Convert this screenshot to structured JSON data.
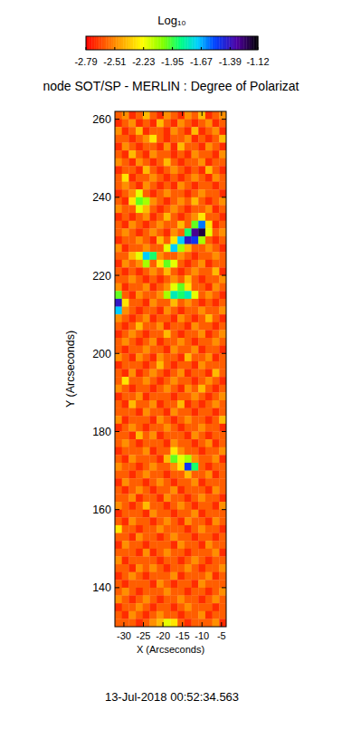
{
  "chart_data": {
    "type": "heatmap",
    "title": "node SOT/SP - MERLIN : Degree of Polarizat",
    "x_label": "X (Arcseconds)",
    "y_label": "Y (Arcseconds)",
    "annotation": "13-Jul-2018 00:52:34.563",
    "colorbar_label": "Log₁₀",
    "colorbar_range": [
      -2.79,
      -1.12
    ],
    "colorbar_ticks": [
      -2.79,
      -2.51,
      -2.23,
      -1.95,
      -1.67,
      -1.39,
      -1.12
    ],
    "xlim": [
      -32.3,
      -3.8
    ],
    "ylim": [
      130,
      262
    ],
    "xticks": [
      -30,
      -25,
      -20,
      -15,
      -10,
      -5
    ],
    "yticks": [
      140,
      160,
      180,
      200,
      220,
      240,
      260
    ],
    "cells": [
      [
        -2.6,
        -2.5,
        -2.7,
        -2.6,
        -2.4,
        -2.6,
        -2.7,
        -2.5,
        -2.6,
        -2.7,
        -2.5,
        -2.6,
        -2.4,
        -2.7,
        -2.6,
        -2.5
      ],
      [
        -2.7,
        -2.6,
        -2.5,
        -2.7,
        -2.6,
        -2.7,
        -2.4,
        -2.6,
        -2.7,
        -2.5,
        -2.6,
        -2.7,
        -2.6,
        -2.5,
        -2.7,
        -2.6
      ],
      [
        -2.5,
        -2.7,
        -2.6,
        -2.4,
        -2.7,
        -2.6,
        -2.6,
        -2.7,
        -2.5,
        -2.6,
        -2.7,
        -2.4,
        -2.7,
        -2.6,
        -2.5,
        -2.7
      ],
      [
        -2.6,
        -2.6,
        -2.7,
        -2.6,
        -2.5,
        -2.3,
        -2.6,
        -2.7,
        -2.6,
        -2.6,
        -2.5,
        -2.7,
        -2.6,
        -2.7,
        -2.6,
        -2.4
      ],
      [
        -2.7,
        -2.5,
        -2.6,
        -2.7,
        -2.6,
        -2.6,
        -2.7,
        -2.5,
        -2.7,
        -2.4,
        -2.6,
        -2.6,
        -2.7,
        -2.5,
        -2.6,
        -2.7
      ],
      [
        -2.6,
        -2.7,
        -2.4,
        -2.6,
        -2.7,
        -2.5,
        -2.6,
        -2.6,
        -2.7,
        -2.6,
        -2.7,
        -2.5,
        -2.6,
        -2.6,
        -2.7,
        -2.5
      ],
      [
        -2.5,
        -2.6,
        -2.7,
        -2.5,
        -2.6,
        -2.7,
        -2.6,
        -2.4,
        -2.6,
        -2.7,
        -2.6,
        -2.6,
        -2.5,
        -2.7,
        -2.6,
        -2.6
      ],
      [
        -2.7,
        -2.6,
        -2.6,
        -2.7,
        -2.4,
        -2.6,
        -2.7,
        -2.6,
        -2.5,
        -2.6,
        -2.7,
        -2.6,
        -2.7,
        -2.4,
        -2.6,
        -2.7
      ],
      [
        -2.6,
        -2.3,
        -2.7,
        -2.6,
        -2.6,
        -2.5,
        -2.6,
        -2.7,
        -2.6,
        -2.7,
        -2.6,
        -2.5,
        -2.6,
        -2.7,
        -2.5,
        -2.6
      ],
      [
        -2.6,
        -2.5,
        -2.6,
        -2.7,
        -2.5,
        -2.6,
        -2.7,
        -2.6,
        -2.7,
        -2.5,
        -2.6,
        -2.7,
        -2.6,
        -2.6,
        -2.7,
        -2.6
      ],
      [
        -2.7,
        -2.6,
        -2.5,
        -2.2,
        -2.6,
        -2.7,
        -2.6,
        -2.5,
        -2.6,
        -2.6,
        -2.7,
        -2.6,
        -2.5,
        -2.6,
        -2.6,
        -2.7
      ],
      [
        -2.6,
        -2.7,
        -2.3,
        -2.0,
        -2.1,
        -2.5,
        -2.6,
        -2.7,
        -2.6,
        -2.5,
        -2.6,
        -2.4,
        -2.6,
        -2.7,
        -2.6,
        -2.5
      ],
      [
        -2.5,
        -2.6,
        -2.6,
        -2.2,
        -2.4,
        -2.6,
        -2.7,
        -2.6,
        -2.5,
        -2.6,
        -2.7,
        -2.6,
        -2.6,
        -2.5,
        -2.7,
        -2.6
      ],
      [
        -2.7,
        -2.6,
        -2.7,
        -2.6,
        -2.5,
        -2.7,
        -2.6,
        -2.4,
        -2.6,
        -2.7,
        -2.6,
        -2.5,
        -2.3,
        -2.6,
        -2.6,
        -2.7
      ],
      [
        -2.6,
        -2.7,
        -2.5,
        -2.6,
        -2.7,
        -2.6,
        -2.5,
        -2.6,
        -2.6,
        -2.4,
        -2.6,
        -2.0,
        -1.6,
        -2.3,
        -2.7,
        -2.6
      ],
      [
        -2.6,
        -2.5,
        -2.6,
        -2.7,
        -2.6,
        -2.5,
        -2.6,
        -2.7,
        -2.5,
        -2.6,
        -1.9,
        -1.3,
        -1.2,
        -2.2,
        -2.6,
        -2.5
      ],
      [
        -2.7,
        -2.6,
        -2.6,
        -2.5,
        -2.6,
        -2.7,
        -2.4,
        -2.6,
        -2.3,
        -1.7,
        -1.4,
        -1.5,
        -2.1,
        -2.6,
        -2.7,
        -2.6
      ],
      [
        -2.5,
        -2.7,
        -2.6,
        -2.6,
        -2.5,
        -2.6,
        -2.6,
        -2.2,
        -1.7,
        -2.1,
        -2.4,
        -2.6,
        -2.6,
        -2.5,
        -2.6,
        -2.7
      ],
      [
        -2.6,
        -2.6,
        -2.4,
        -2.2,
        -1.7,
        -1.9,
        -2.5,
        -2.6,
        -2.6,
        -2.5,
        -2.6,
        -2.7,
        -2.6,
        -2.6,
        -2.5,
        -2.6
      ],
      [
        -2.7,
        -2.5,
        -2.6,
        -2.5,
        -2.1,
        -2.6,
        -2.3,
        -2.0,
        -2.2,
        -2.6,
        -2.7,
        -2.6,
        -2.5,
        -2.7,
        -2.6,
        -2.6
      ],
      [
        -2.6,
        -2.7,
        -2.6,
        -2.7,
        -2.6,
        -2.5,
        -2.6,
        -2.4,
        -2.6,
        -2.7,
        -2.6,
        -2.5,
        -2.6,
        -2.6,
        -2.4,
        -2.7
      ],
      [
        -2.6,
        -2.6,
        -2.5,
        -2.6,
        -2.7,
        -2.6,
        -2.7,
        -2.6,
        -2.5,
        -2.6,
        -2.4,
        -2.6,
        -2.7,
        -2.6,
        -2.6,
        -2.5
      ],
      [
        -2.5,
        -2.7,
        -2.6,
        -2.6,
        -2.5,
        -2.7,
        -2.6,
        -2.5,
        -2.2,
        -2.0,
        -2.3,
        -2.6,
        -2.6,
        -2.7,
        -2.5,
        -2.6
      ],
      [
        -2.0,
        -2.6,
        -2.7,
        -2.5,
        -2.6,
        -2.6,
        -2.5,
        -2.1,
        -1.8,
        -1.9,
        -1.8,
        -2.2,
        -2.6,
        -2.5,
        -2.6,
        -2.7
      ],
      [
        -1.4,
        -2.3,
        -2.6,
        -2.6,
        -2.7,
        -2.5,
        -2.6,
        -2.6,
        -2.4,
        -2.6,
        -2.5,
        -2.6,
        -2.7,
        -2.6,
        -2.7,
        -2.6
      ],
      [
        -1.7,
        -2.5,
        -2.6,
        -2.7,
        -2.6,
        -2.6,
        -2.7,
        -2.5,
        -2.6,
        -2.7,
        -2.6,
        -2.6,
        -2.5,
        -2.6,
        -2.6,
        -2.5
      ],
      [
        -2.5,
        -2.6,
        -2.7,
        -2.6,
        -2.5,
        -2.7,
        -2.6,
        -2.6,
        -2.7,
        -2.5,
        -2.6,
        -2.7,
        -2.6,
        -2.4,
        -2.6,
        -2.7
      ],
      [
        -2.6,
        -2.7,
        -2.6,
        -2.4,
        -2.6,
        -2.6,
        -2.5,
        -2.7,
        -2.6,
        -2.6,
        -2.7,
        -2.5,
        -2.6,
        -2.6,
        -2.7,
        -2.6
      ],
      [
        -2.7,
        -2.6,
        -2.5,
        -2.6,
        -2.7,
        -2.6,
        -2.6,
        -2.4,
        -2.6,
        -2.7,
        -2.6,
        -2.6,
        -2.5,
        -2.7,
        -2.6,
        -2.5
      ],
      [
        -2.6,
        -2.5,
        -2.6,
        -2.7,
        -2.6,
        -2.5,
        -2.7,
        -2.6,
        -2.6,
        -2.5,
        -2.6,
        -2.7,
        -2.6,
        -2.6,
        -2.5,
        -2.6
      ],
      [
        -2.6,
        -2.7,
        -2.6,
        -2.6,
        -2.5,
        -2.6,
        -2.6,
        -2.7,
        -2.5,
        -2.6,
        -2.6,
        -2.5,
        -2.7,
        -2.6,
        -2.6,
        -2.7
      ],
      [
        -2.5,
        -2.6,
        -2.7,
        -2.5,
        -2.6,
        -2.7,
        -2.5,
        -2.6,
        -2.6,
        -2.7,
        -2.4,
        -2.6,
        -2.6,
        -2.5,
        -2.7,
        -2.6
      ],
      [
        -2.7,
        -2.6,
        -2.6,
        -2.6,
        -2.7,
        -2.6,
        -2.4,
        -2.6,
        -2.7,
        -2.6,
        -2.6,
        -2.7,
        -2.5,
        -2.6,
        -2.6,
        -2.6
      ],
      [
        -2.6,
        -2.7,
        -2.5,
        -2.7,
        -2.6,
        -2.5,
        -2.6,
        -2.7,
        -2.6,
        -2.5,
        -2.7,
        -2.6,
        -2.6,
        -2.7,
        -2.4,
        -2.6
      ],
      [
        -2.6,
        -2.3,
        -2.6,
        -2.6,
        -2.5,
        -2.6,
        -2.7,
        -2.6,
        -2.5,
        -2.6,
        -2.6,
        -2.7,
        -2.6,
        -2.5,
        -2.6,
        -2.7
      ],
      [
        -2.5,
        -2.6,
        -2.7,
        -2.6,
        -2.6,
        -2.7,
        -2.6,
        -2.5,
        -2.6,
        -2.7,
        -2.5,
        -2.6,
        -2.4,
        -2.6,
        -2.7,
        -2.6
      ],
      [
        -2.7,
        -2.6,
        -2.6,
        -2.5,
        -2.7,
        -2.6,
        -2.6,
        -2.6,
        -2.7,
        -2.6,
        -2.6,
        -2.5,
        -2.6,
        -2.7,
        -2.6,
        -2.5
      ],
      [
        -2.6,
        -2.7,
        -2.4,
        -2.6,
        -2.6,
        -2.5,
        -2.7,
        -2.6,
        -2.6,
        -2.4,
        -2.7,
        -2.6,
        -2.7,
        -2.6,
        -2.5,
        -2.6
      ],
      [
        -2.6,
        -2.6,
        -2.6,
        -2.7,
        -2.5,
        -2.6,
        -2.6,
        -2.7,
        -2.5,
        -2.6,
        -2.6,
        -2.7,
        -2.6,
        -2.6,
        -2.7,
        -2.6
      ],
      [
        -2.5,
        -2.7,
        -2.6,
        -2.6,
        -2.6,
        -2.7,
        -2.5,
        -2.6,
        -2.7,
        -2.6,
        -2.5,
        -2.6,
        -2.6,
        -2.7,
        -2.6,
        -2.4
      ],
      [
        -2.7,
        -2.6,
        -2.5,
        -2.6,
        -2.7,
        -2.6,
        -2.6,
        -2.5,
        -2.6,
        -2.7,
        -2.6,
        -2.6,
        -2.5,
        -2.6,
        -2.6,
        -2.7
      ],
      [
        -2.6,
        -2.6,
        -2.7,
        -2.4,
        -2.6,
        -2.5,
        -2.7,
        -2.6,
        -2.6,
        -2.6,
        -2.7,
        -2.5,
        -2.6,
        -2.7,
        -2.6,
        -2.6
      ],
      [
        -2.6,
        -2.5,
        -2.6,
        -2.7,
        -2.6,
        -2.6,
        -2.6,
        -2.7,
        -2.5,
        -2.6,
        -2.6,
        -2.7,
        -2.6,
        -2.5,
        -2.7,
        -2.6
      ],
      [
        -2.7,
        -2.6,
        -2.6,
        -2.6,
        -2.5,
        -2.7,
        -2.6,
        -2.6,
        -2.3,
        -2.5,
        -2.6,
        -2.6,
        -2.7,
        -2.6,
        -2.6,
        -2.5
      ],
      [
        -2.6,
        -2.7,
        -2.5,
        -2.6,
        -2.6,
        -2.6,
        -2.7,
        -2.4,
        -2.0,
        -2.2,
        -2.1,
        -2.5,
        -2.6,
        -2.6,
        -2.5,
        -2.7
      ],
      [
        -2.5,
        -2.6,
        -2.6,
        -2.7,
        -2.6,
        -2.5,
        -2.6,
        -2.6,
        -2.5,
        -2.3,
        -1.5,
        -1.9,
        -2.6,
        -2.7,
        -2.6,
        -2.6
      ],
      [
        -2.6,
        -2.6,
        -2.7,
        -2.6,
        -2.5,
        -2.6,
        -2.6,
        -2.7,
        -2.6,
        -2.6,
        -2.4,
        -2.6,
        -2.6,
        -2.5,
        -2.7,
        -2.6
      ],
      [
        -2.7,
        -2.5,
        -2.6,
        -2.6,
        -2.7,
        -2.6,
        -2.5,
        -2.6,
        -2.7,
        -2.6,
        -2.6,
        -2.5,
        -2.7,
        -2.6,
        -2.6,
        -2.6
      ],
      [
        -2.6,
        -2.7,
        -2.6,
        -2.5,
        -2.6,
        -2.7,
        -2.6,
        -2.6,
        -2.5,
        -2.7,
        -2.6,
        -2.6,
        -2.6,
        -2.7,
        -2.5,
        -2.6
      ],
      [
        -2.6,
        -2.6,
        -2.5,
        -2.7,
        -2.6,
        -2.6,
        -2.7,
        -2.5,
        -2.6,
        -2.6,
        -2.7,
        -2.6,
        -2.5,
        -2.6,
        -2.6,
        -2.7
      ],
      [
        -2.5,
        -2.6,
        -2.7,
        -2.6,
        -2.4,
        -2.6,
        -2.6,
        -2.7,
        -2.6,
        -2.5,
        -2.6,
        -2.7,
        -2.6,
        -2.6,
        -2.7,
        -2.5
      ],
      [
        -2.7,
        -2.6,
        -2.6,
        -2.6,
        -2.7,
        -2.5,
        -2.6,
        -2.6,
        -2.7,
        -2.6,
        -2.6,
        -2.5,
        -2.7,
        -2.6,
        -2.6,
        -2.6
      ],
      [
        -2.6,
        -2.7,
        -2.5,
        -2.6,
        -2.6,
        -2.7,
        -2.6,
        -2.5,
        -2.6,
        -2.7,
        -2.5,
        -2.6,
        -2.6,
        -2.7,
        -2.5,
        -2.6
      ],
      [
        -2.3,
        -2.6,
        -2.6,
        -2.7,
        -2.6,
        -2.6,
        -2.5,
        -2.6,
        -2.6,
        -2.6,
        -2.7,
        -2.6,
        -2.5,
        -2.6,
        -2.6,
        -2.7
      ],
      [
        -2.6,
        -2.6,
        -2.7,
        -2.5,
        -2.6,
        -2.6,
        -2.7,
        -2.6,
        -2.5,
        -2.6,
        -2.6,
        -2.7,
        -2.6,
        -2.6,
        -2.7,
        -2.6
      ],
      [
        -2.7,
        -2.5,
        -2.6,
        -2.6,
        -2.7,
        -2.6,
        -2.6,
        -2.6,
        -2.7,
        -2.5,
        -2.6,
        -2.6,
        -2.7,
        -2.5,
        -2.6,
        -2.6
      ],
      [
        -2.6,
        -2.6,
        -2.6,
        -2.7,
        -2.5,
        -2.7,
        -2.6,
        -2.5,
        -2.6,
        -2.6,
        -2.7,
        -2.6,
        -2.6,
        -2.6,
        -2.5,
        -2.7
      ],
      [
        -2.5,
        -2.7,
        -2.6,
        -2.6,
        -2.6,
        -2.6,
        -2.7,
        -2.6,
        -2.6,
        -2.7,
        -2.6,
        -2.5,
        -2.6,
        -2.7,
        -2.6,
        -2.6
      ],
      [
        -2.6,
        -2.6,
        -2.7,
        -2.5,
        -2.6,
        -2.5,
        -2.6,
        -2.7,
        -2.6,
        -2.6,
        -2.5,
        -2.6,
        -2.7,
        -2.6,
        -2.6,
        -2.5
      ],
      [
        -2.7,
        -2.6,
        -2.5,
        -2.6,
        -2.7,
        -2.6,
        -2.6,
        -2.6,
        -2.5,
        -2.7,
        -2.6,
        -2.6,
        -2.6,
        -2.5,
        -2.7,
        -2.6
      ],
      [
        -2.6,
        -2.7,
        -2.6,
        -2.6,
        -2.6,
        -2.7,
        -2.5,
        -2.6,
        -2.7,
        -2.6,
        -2.6,
        -2.7,
        -2.5,
        -2.6,
        -2.6,
        -2.6
      ],
      [
        -2.6,
        -2.5,
        -2.6,
        -2.7,
        -2.6,
        -2.6,
        -2.6,
        -2.5,
        -2.6,
        -2.6,
        -2.7,
        -2.6,
        -2.6,
        -2.7,
        -2.6,
        -2.5
      ],
      [
        -2.5,
        -2.6,
        -2.7,
        -2.6,
        -2.5,
        -2.6,
        -2.7,
        -2.6,
        -2.6,
        -2.5,
        -2.6,
        -2.6,
        -2.7,
        -2.6,
        -2.5,
        -2.6
      ],
      [
        -2.7,
        -2.6,
        -2.6,
        -2.5,
        -2.6,
        -2.7,
        -2.6,
        -2.6,
        -2.7,
        -2.6,
        -2.5,
        -2.6,
        -2.6,
        -2.6,
        -2.7,
        -2.6
      ],
      [
        -2.6,
        -2.7,
        -2.5,
        -2.6,
        -2.7,
        -2.6,
        -2.5,
        -2.6,
        -2.6,
        -2.7,
        -2.6,
        -2.6,
        -2.5,
        -2.7,
        -2.6,
        -2.6
      ],
      [
        -2.6,
        -2.6,
        -2.6,
        -2.7,
        -2.6,
        -2.5,
        -2.4,
        -2.2,
        -2.3,
        -2.6,
        -2.7,
        -2.6,
        -2.6,
        -2.6,
        -2.5,
        -2.7
      ]
    ]
  }
}
